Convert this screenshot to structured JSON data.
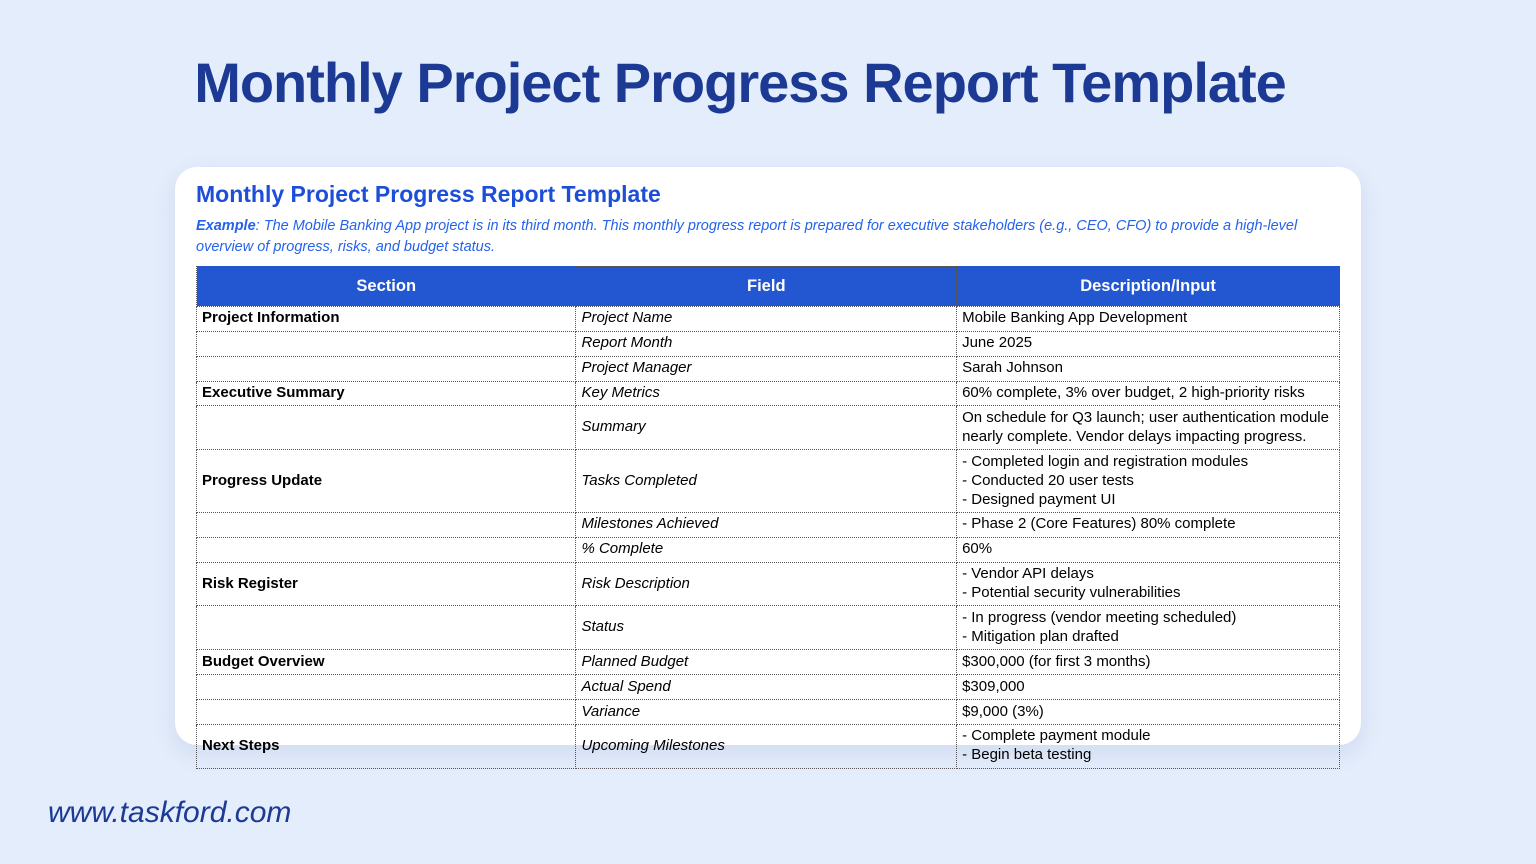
{
  "page": {
    "title": "Monthly Project Progress Report Template",
    "footer_url": "www.taskford.com"
  },
  "card": {
    "title": "Monthly Project Progress Report Template",
    "example_label": "Example",
    "example_text": ": The Mobile Banking App project is in its third month. This monthly progress report is prepared for executive stakeholders (e.g., CEO, CFO) to provide a high-level overview of progress, risks, and budget status."
  },
  "table": {
    "headers": [
      "Section",
      "Field",
      "Description/Input"
    ],
    "rows": [
      {
        "section": "Project Information",
        "field": "Project Name",
        "desc": "Mobile Banking App Development"
      },
      {
        "section": "",
        "field": "Report Month",
        "desc": "June 2025"
      },
      {
        "section": "",
        "field": "Project Manager",
        "desc": "Sarah Johnson"
      },
      {
        "section": "Executive Summary",
        "field": "Key Metrics",
        "desc": "60% complete, 3% over budget, 2 high-priority risks"
      },
      {
        "section": "",
        "field": "Summary",
        "desc": "On schedule for Q3 launch; user authentication module nearly complete. Vendor delays impacting progress."
      },
      {
        "section": "Progress Update",
        "field": "Tasks Completed",
        "desc": "- Completed login and registration modules\n- Conducted 20 user tests\n- Designed payment UI"
      },
      {
        "section": "",
        "field": "Milestones Achieved",
        "desc": "- Phase 2 (Core Features) 80% complete"
      },
      {
        "section": "",
        "field": "% Complete",
        "desc": "60%"
      },
      {
        "section": "Risk Register",
        "field": "Risk Description",
        "desc": "- Vendor API delays\n- Potential security vulnerabilities"
      },
      {
        "section": "",
        "field": "Status",
        "desc": "- In progress (vendor meeting scheduled)\n- Mitigation plan drafted"
      },
      {
        "section": "Budget Overview",
        "field": "Planned Budget",
        "desc": "$300,000 (for first 3 months)"
      },
      {
        "section": "",
        "field": "Actual Spend",
        "desc": "$309,000"
      },
      {
        "section": "",
        "field": "Variance",
        "desc": "$9,000 (3%)"
      },
      {
        "section": "Next Steps",
        "field": "Upcoming Milestones",
        "desc": "- Complete payment module\n- Begin beta testing"
      }
    ]
  },
  "colors": {
    "page_background": "#E4EDFB",
    "page_title": "#1C3A94",
    "card_title": "#1D4ED8",
    "example_text": "#2563EB",
    "table_header_bg": "#2357D2",
    "table_header_text": "#FFFFFF",
    "footer_text": "#1C3A94"
  }
}
